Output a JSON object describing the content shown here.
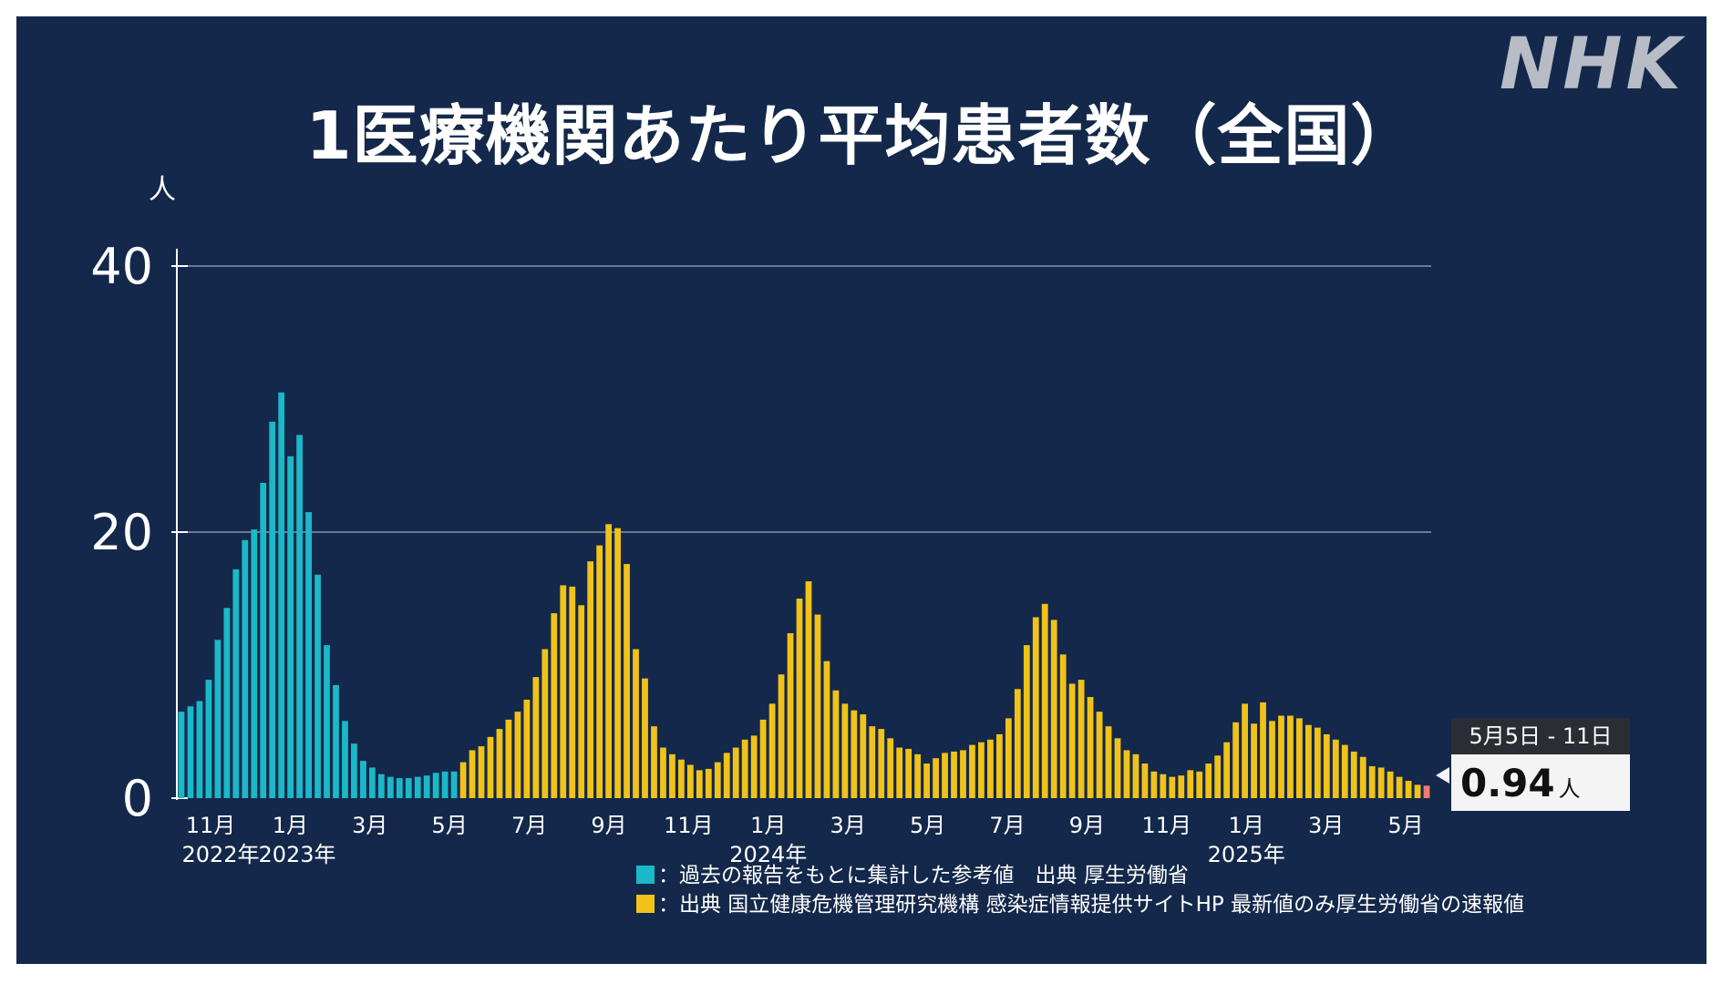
{
  "title": "1医療機関あたり平均患者数（全国）",
  "logo": "NHK",
  "chart_data": {
    "type": "bar",
    "title": "1医療機関あたり平均患者数（全国）",
    "ylabel": "人",
    "ylim": [
      0,
      43
    ],
    "yticks": [
      0,
      20,
      40
    ],
    "grid": true,
    "x_month_labels": [
      "11月",
      "1月",
      "3月",
      "5月",
      "7月",
      "9月",
      "11月",
      "1月",
      "3月",
      "5月",
      "7月",
      "9月",
      "11月",
      "1月",
      "3月",
      "5月"
    ],
    "year_labels": [
      "2022年",
      "2023年",
      "2024年",
      "2025年"
    ],
    "series": [
      {
        "color": "#1bb8c8",
        "values": [
          6.5,
          6.9,
          7.3,
          8.9,
          11.9,
          14.3,
          17.2,
          19.4,
          20.2,
          23.7,
          28.3,
          30.5,
          25.7,
          27.3,
          21.5,
          16.8,
          11.5,
          8.5,
          5.8,
          4.1,
          2.8,
          2.3,
          1.8,
          1.6,
          1.5,
          1.5,
          1.6,
          1.7,
          1.9,
          2.0,
          2.0
        ]
      },
      {
        "color": "#f0c21a",
        "values": [
          2.7,
          3.6,
          3.9,
          4.6,
          5.2,
          5.9,
          6.5,
          7.4,
          9.1,
          11.2,
          13.9,
          16.0,
          15.9,
          14.5,
          17.8,
          19.0,
          20.6,
          20.3,
          17.6,
          11.2,
          9.0,
          5.4,
          3.8,
          3.3,
          2.9,
          2.5,
          2.1,
          2.2,
          2.7,
          3.4,
          3.8,
          4.4,
          4.7,
          5.9,
          7.1,
          9.3,
          12.4,
          15.0,
          16.3,
          13.8,
          10.3,
          8.1,
          7.1,
          6.6,
          6.3,
          5.4,
          5.2,
          4.5,
          3.8,
          3.7,
          3.3,
          2.6,
          3.0,
          3.4,
          3.5,
          3.6,
          4.0,
          4.2,
          4.4,
          4.8,
          6.0,
          8.2,
          11.5,
          13.6,
          14.6,
          13.4,
          10.8,
          8.6,
          8.9,
          7.6,
          6.5,
          5.4,
          4.5,
          3.6,
          3.3,
          2.6,
          2.0,
          1.8,
          1.6,
          1.7,
          2.1,
          2.0,
          2.6,
          3.2,
          4.2,
          5.7,
          7.1,
          5.6,
          7.2,
          5.8,
          6.2,
          6.2,
          6.0,
          5.5,
          5.3,
          4.8,
          4.4,
          4.0,
          3.5,
          3.1,
          2.4,
          2.3,
          2.0,
          1.6,
          1.3,
          1.0
        ]
      },
      {
        "color": "#ef7a78",
        "values": [
          0.94
        ]
      }
    ],
    "legend": [
      {
        "color": "#1bb8c8",
        "label": "：過去の報告をもとに集計した参考値　出典 厚生労働省"
      },
      {
        "color": "#f0c21a",
        "label": "：出典 国立健康危機管理研究機構 感染症情報提供サイトHP 最新値のみ厚生労働省の速報値"
      }
    ],
    "latest": {
      "period": "5月5日 - 11日",
      "value": "0.94",
      "unit": "人"
    }
  }
}
